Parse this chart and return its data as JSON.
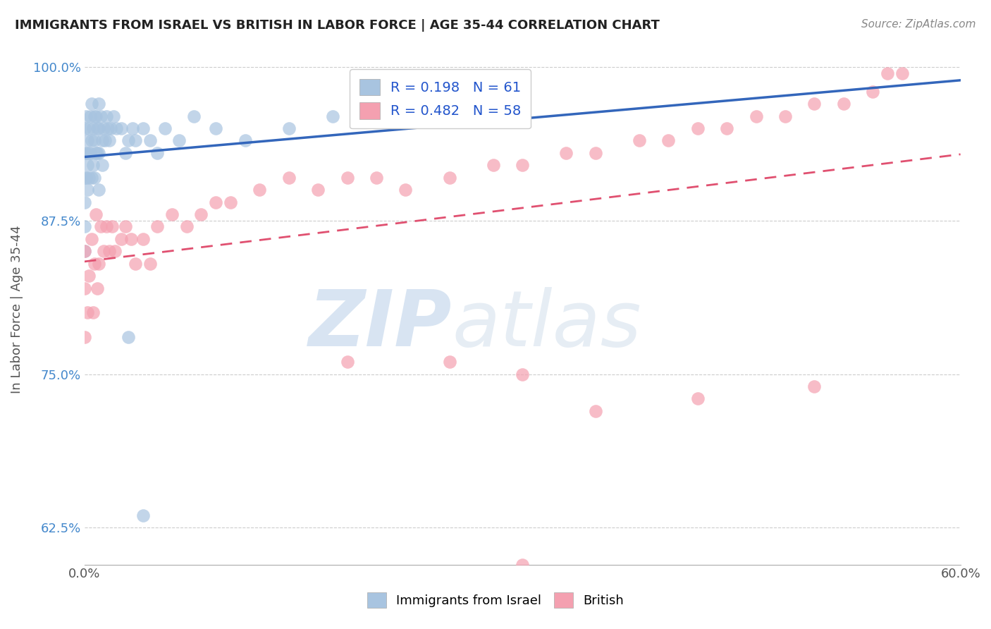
{
  "title": "IMMIGRANTS FROM ISRAEL VS BRITISH IN LABOR FORCE | AGE 35-44 CORRELATION CHART",
  "source": "Source: ZipAtlas.com",
  "ylabel": "In Labor Force | Age 35-44",
  "xlim": [
    0.0,
    0.6
  ],
  "ylim": [
    0.595,
    1.01
  ],
  "xticks": [
    0.0,
    0.1,
    0.2,
    0.3,
    0.4,
    0.5,
    0.6
  ],
  "xticklabels": [
    "0.0%",
    "",
    "",
    "",
    "",
    "",
    "60.0%"
  ],
  "yticks": [
    0.625,
    0.75,
    0.875,
    1.0
  ],
  "yticklabels": [
    "62.5%",
    "75.0%",
    "87.5%",
    "100.0%"
  ],
  "israel_color": "#a8c4e0",
  "british_color": "#f4a0b0",
  "israel_line_color": "#3366bb",
  "british_line_color": "#e05070",
  "watermark_zip": "ZIP",
  "watermark_atlas": "atlas",
  "watermark_color_zip": "#b8cfe8",
  "watermark_color_atlas": "#c8d8e8",
  "legend_israel_label": "R = 0.198   N = 61",
  "legend_british_label": "R = 0.482   N = 58",
  "israel_x": [
    0.0,
    0.0,
    0.0,
    0.0,
    0.0,
    0.0,
    0.001,
    0.001,
    0.001,
    0.002,
    0.002,
    0.002,
    0.003,
    0.003,
    0.003,
    0.004,
    0.004,
    0.005,
    0.005,
    0.005,
    0.006,
    0.006,
    0.007,
    0.007,
    0.007,
    0.008,
    0.008,
    0.009,
    0.009,
    0.01,
    0.01,
    0.01,
    0.01,
    0.011,
    0.012,
    0.012,
    0.013,
    0.014,
    0.015,
    0.016,
    0.017,
    0.018,
    0.02,
    0.022,
    0.025,
    0.028,
    0.03,
    0.033,
    0.035,
    0.04,
    0.045,
    0.05,
    0.055,
    0.065,
    0.075,
    0.09,
    0.11,
    0.14,
    0.17,
    0.03,
    0.04
  ],
  "israel_y": [
    0.95,
    0.93,
    0.91,
    0.89,
    0.87,
    0.85,
    0.96,
    0.93,
    0.91,
    0.94,
    0.92,
    0.9,
    0.95,
    0.93,
    0.91,
    0.96,
    0.93,
    0.97,
    0.94,
    0.91,
    0.95,
    0.92,
    0.96,
    0.94,
    0.91,
    0.96,
    0.93,
    0.95,
    0.93,
    0.97,
    0.95,
    0.93,
    0.9,
    0.96,
    0.94,
    0.92,
    0.95,
    0.94,
    0.96,
    0.95,
    0.94,
    0.95,
    0.96,
    0.95,
    0.95,
    0.93,
    0.94,
    0.95,
    0.94,
    0.95,
    0.94,
    0.93,
    0.95,
    0.94,
    0.96,
    0.95,
    0.94,
    0.95,
    0.96,
    0.78,
    0.635
  ],
  "british_x": [
    0.0,
    0.0,
    0.0,
    0.002,
    0.003,
    0.005,
    0.006,
    0.007,
    0.008,
    0.009,
    0.01,
    0.011,
    0.013,
    0.015,
    0.017,
    0.019,
    0.021,
    0.025,
    0.028,
    0.032,
    0.035,
    0.04,
    0.045,
    0.05,
    0.06,
    0.07,
    0.08,
    0.09,
    0.1,
    0.12,
    0.14,
    0.16,
    0.18,
    0.2,
    0.22,
    0.25,
    0.28,
    0.3,
    0.33,
    0.35,
    0.38,
    0.4,
    0.42,
    0.44,
    0.46,
    0.48,
    0.5,
    0.52,
    0.54,
    0.55,
    0.18,
    0.25,
    0.3,
    0.35,
    0.42,
    0.5,
    0.56,
    0.3
  ],
  "british_y": [
    0.82,
    0.78,
    0.85,
    0.8,
    0.83,
    0.86,
    0.8,
    0.84,
    0.88,
    0.82,
    0.84,
    0.87,
    0.85,
    0.87,
    0.85,
    0.87,
    0.85,
    0.86,
    0.87,
    0.86,
    0.84,
    0.86,
    0.84,
    0.87,
    0.88,
    0.87,
    0.88,
    0.89,
    0.89,
    0.9,
    0.91,
    0.9,
    0.91,
    0.91,
    0.9,
    0.91,
    0.92,
    0.92,
    0.93,
    0.93,
    0.94,
    0.94,
    0.95,
    0.95,
    0.96,
    0.96,
    0.97,
    0.97,
    0.98,
    0.995,
    0.76,
    0.76,
    0.75,
    0.72,
    0.73,
    0.74,
    0.995,
    0.595
  ]
}
